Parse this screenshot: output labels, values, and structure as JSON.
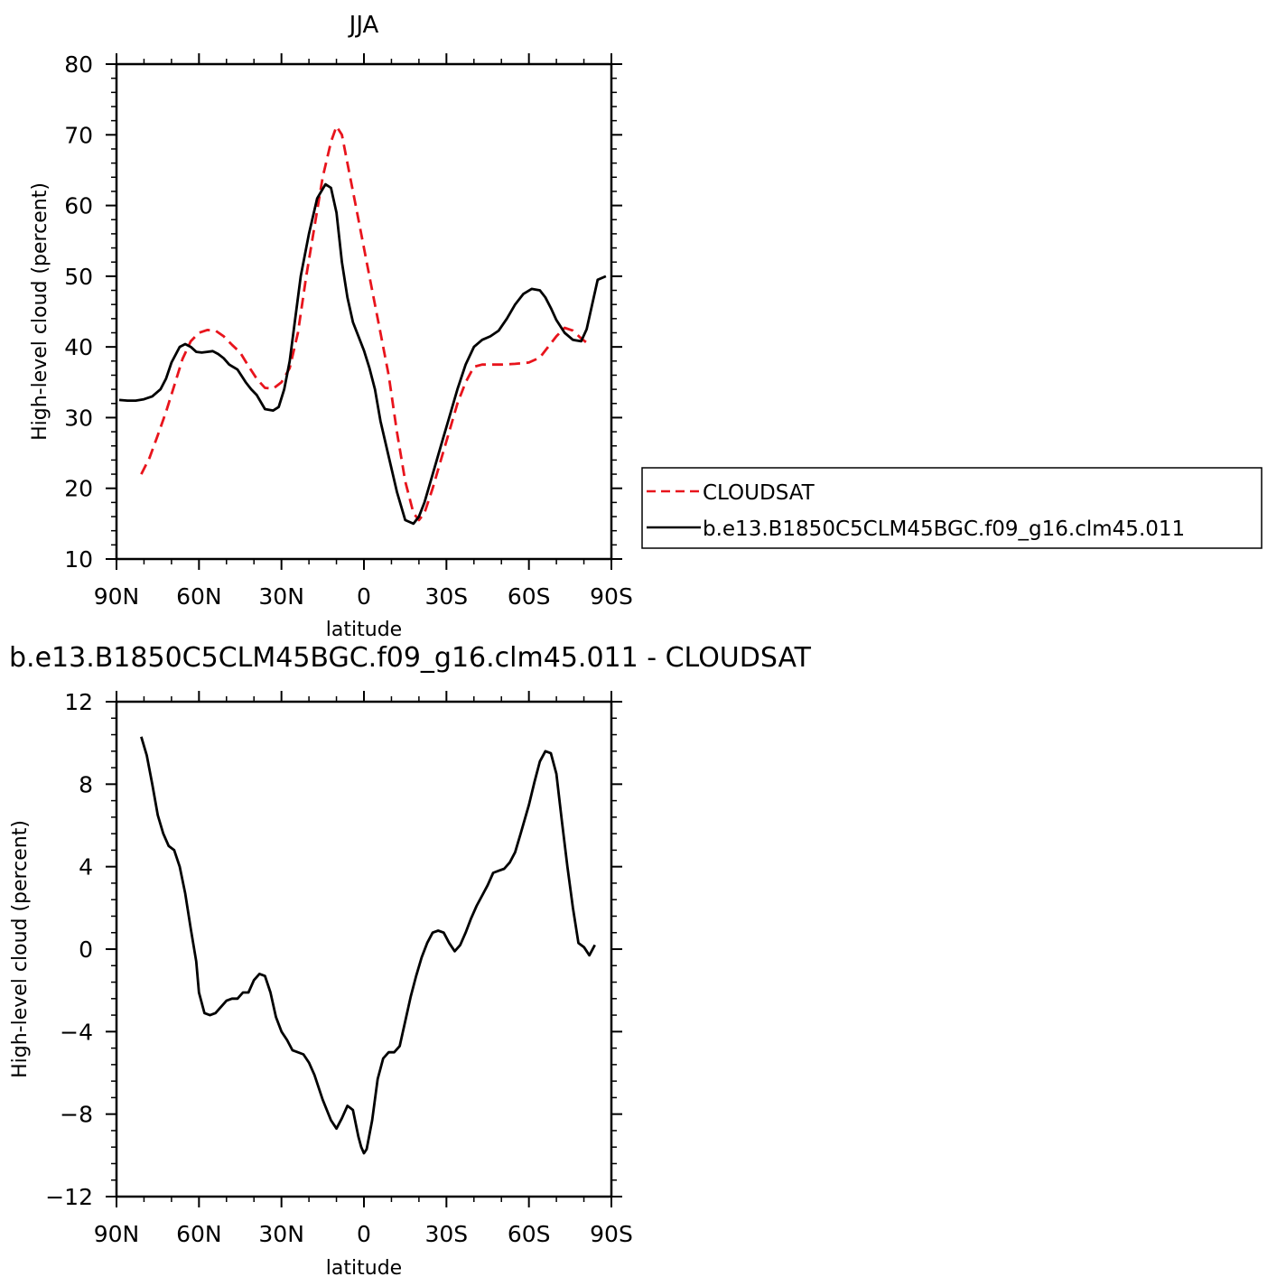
{
  "chart_data": [
    {
      "type": "line",
      "title": "JJA",
      "xlabel": "latitude",
      "ylabel": "High-level cloud (percent)",
      "ylim": [
        10,
        80
      ],
      "xlim": [
        -90,
        90
      ],
      "x_direction": "90N on left, 90S on right",
      "yticks": [
        10,
        20,
        30,
        40,
        50,
        60,
        70,
        80
      ],
      "xticks": [
        {
          "value": -90,
          "label": "90N"
        },
        {
          "value": -60,
          "label": "60N"
        },
        {
          "value": -30,
          "label": "30N"
        },
        {
          "value": 0,
          "label": "0"
        },
        {
          "value": 30,
          "label": "30S"
        },
        {
          "value": 60,
          "label": "60S"
        },
        {
          "value": 90,
          "label": "90S"
        }
      ],
      "legend_position": "right",
      "series": [
        {
          "name": "CLOUDSAT",
          "color": "#e8141c",
          "style": "dashed",
          "x": [
            -81,
            -78,
            -75,
            -72,
            -69,
            -66,
            -63,
            -60,
            -57,
            -54,
            -51,
            -48,
            -45,
            -42,
            -39,
            -36,
            -33,
            -30,
            -27,
            -24,
            -21,
            -18,
            -15,
            -12,
            -10,
            -8,
            -6,
            -3,
            0,
            3,
            6,
            9,
            12,
            15,
            18,
            20,
            22,
            25,
            28,
            31,
            34,
            37,
            40,
            43,
            46,
            50,
            55,
            60,
            64,
            67,
            70,
            73,
            76,
            79,
            81
          ],
          "y": [
            22.0,
            24.3,
            27.5,
            30.8,
            34.5,
            38.3,
            40.8,
            42.0,
            42.4,
            42.3,
            41.5,
            40.3,
            39.2,
            37.3,
            35.5,
            34.2,
            34.1,
            35.0,
            37.0,
            42.0,
            50.0,
            57.0,
            64.0,
            69.0,
            71.2,
            70.0,
            66.0,
            60.0,
            54.0,
            48.0,
            42.0,
            36.0,
            28.0,
            21.0,
            16.5,
            15.5,
            16.5,
            20.0,
            24.0,
            28.0,
            32.0,
            35.0,
            37.2,
            37.5,
            37.5,
            37.5,
            37.6,
            37.8,
            38.5,
            40.0,
            41.5,
            42.7,
            42.3,
            41.2,
            40.6
          ]
        },
        {
          "name": "b.e13.B1850C5CLM45BGC.f09_g16.clm45.011",
          "color": "#000000",
          "style": "solid",
          "x": [
            -89,
            -86,
            -83,
            -80,
            -77,
            -74,
            -72,
            -70,
            -67,
            -65,
            -63,
            -61,
            -59,
            -57,
            -55,
            -53,
            -51,
            -49,
            -46,
            -43,
            -41,
            -39,
            -36,
            -33,
            -31,
            -29,
            -27,
            -25,
            -23,
            -20,
            -17,
            -14,
            -12,
            -10,
            -8,
            -6,
            -4,
            -2,
            0,
            2,
            4,
            6,
            9,
            12,
            15,
            18,
            20,
            22,
            25,
            28,
            31,
            34,
            37,
            40,
            43,
            46,
            49,
            52,
            55,
            58,
            61,
            64,
            66,
            68,
            70,
            73,
            76,
            79,
            81,
            83,
            85,
            88
          ],
          "y": [
            32.5,
            32.4,
            32.4,
            32.6,
            33.0,
            34.0,
            35.5,
            37.8,
            40.0,
            40.4,
            40.0,
            39.3,
            39.2,
            39.3,
            39.4,
            39.0,
            38.4,
            37.5,
            36.8,
            35.0,
            34.0,
            33.2,
            31.2,
            31.0,
            31.5,
            34.0,
            38.0,
            44.0,
            50.0,
            56.0,
            61.0,
            63.0,
            62.5,
            59.0,
            52.0,
            47.0,
            43.5,
            41.5,
            39.5,
            37.0,
            34.0,
            29.5,
            24.5,
            19.5,
            15.5,
            15.0,
            16.0,
            18.0,
            22.0,
            26.0,
            30.0,
            34.0,
            37.5,
            40.0,
            41.0,
            41.5,
            42.3,
            44.0,
            46.0,
            47.5,
            48.2,
            48.0,
            47.0,
            45.5,
            43.8,
            42.0,
            41.0,
            40.8,
            42.5,
            46.0,
            49.5,
            50.0
          ]
        }
      ]
    },
    {
      "type": "line",
      "title": "b.e13.B1850C5CLM45BGC.f09_g16.clm45.011 - CLOUDSAT",
      "xlabel": "latitude",
      "ylabel": "High-level cloud (percent)",
      "ylim": [
        -12,
        12
      ],
      "xlim": [
        -90,
        90
      ],
      "x_direction": "90N on left, 90S on right",
      "yticks": [
        -12,
        -8,
        -4,
        0,
        4,
        8,
        12
      ],
      "ytick_labels": [
        "−12",
        "−8",
        "−4",
        "0",
        "4",
        "8",
        "12"
      ],
      "xticks": [
        {
          "value": -90,
          "label": "90N"
        },
        {
          "value": -60,
          "label": "60N"
        },
        {
          "value": -30,
          "label": "30N"
        },
        {
          "value": 0,
          "label": "0"
        },
        {
          "value": 30,
          "label": "30S"
        },
        {
          "value": 60,
          "label": "60S"
        },
        {
          "value": 90,
          "label": "90S"
        }
      ],
      "series": [
        {
          "color": "#000000",
          "style": "solid",
          "x": [
            -81,
            -79,
            -77,
            -75,
            -73,
            -71,
            -69,
            -67,
            -65,
            -63,
            -61,
            -60,
            -58,
            -56,
            -54,
            -52,
            -50,
            -48,
            -46,
            -44,
            -42,
            -40,
            -38,
            -36,
            -34,
            -32,
            -30,
            -28,
            -26,
            -24,
            -22,
            -20,
            -18,
            -15,
            -12,
            -10,
            -8,
            -6,
            -5,
            -4,
            -2,
            -1,
            0,
            1,
            3,
            5,
            7,
            9,
            11,
            13,
            15,
            17,
            19,
            21,
            23,
            25,
            27,
            29,
            31,
            33,
            35,
            37,
            39,
            41,
            43,
            45,
            47,
            49,
            51,
            53,
            55,
            57,
            60,
            62,
            64,
            66,
            68,
            70,
            72,
            74,
            76,
            78,
            80,
            82,
            84
          ],
          "y": [
            10.3,
            9.4,
            8.0,
            6.5,
            5.6,
            5.0,
            4.8,
            4.0,
            2.7,
            1.0,
            -0.6,
            -2.1,
            -3.1,
            -3.2,
            -3.1,
            -2.8,
            -2.5,
            -2.4,
            -2.4,
            -2.1,
            -2.1,
            -1.5,
            -1.2,
            -1.3,
            -2.1,
            -3.3,
            -4.0,
            -4.4,
            -4.9,
            -5.0,
            -5.1,
            -5.5,
            -6.1,
            -7.3,
            -8.3,
            -8.7,
            -8.2,
            -7.6,
            -7.7,
            -7.8,
            -9.1,
            -9.6,
            -9.9,
            -9.7,
            -8.3,
            -6.3,
            -5.3,
            -5.0,
            -5.0,
            -4.7,
            -3.5,
            -2.3,
            -1.3,
            -0.4,
            0.3,
            0.8,
            0.9,
            0.8,
            0.3,
            -0.1,
            0.2,
            0.8,
            1.5,
            2.1,
            2.6,
            3.1,
            3.7,
            3.8,
            3.9,
            4.2,
            4.7,
            5.6,
            7.0,
            8.1,
            9.1,
            9.6,
            9.5,
            8.5,
            6.2,
            4.0,
            2.0,
            0.3,
            0.1,
            -0.3,
            0.2
          ]
        }
      ]
    }
  ]
}
